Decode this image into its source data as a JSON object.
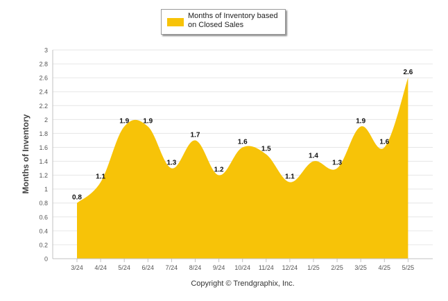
{
  "chart_data": {
    "type": "area",
    "categories": [
      "3/24",
      "4/24",
      "5/24",
      "6/24",
      "7/24",
      "8/24",
      "9/24",
      "10/24",
      "11/24",
      "12/24",
      "1/25",
      "2/25",
      "3/25",
      "4/25",
      "5/25"
    ],
    "series": [
      {
        "name": "Months of Inventory based on Closed Sales",
        "values": [
          0.8,
          1.1,
          1.9,
          1.9,
          1.3,
          1.7,
          1.2,
          1.6,
          1.5,
          1.1,
          1.4,
          1.3,
          1.9,
          1.6,
          2.6
        ],
        "labels": [
          "0.8",
          "1.1",
          "1.9",
          "1.9",
          "1.3",
          "1.7",
          "1.2",
          "1.6",
          "1.5",
          "1.1",
          "1.4",
          "1.3",
          "1.9",
          "1.6",
          "2.6"
        ]
      }
    ],
    "ylabel": "Months of Inventory",
    "xlabel": "",
    "ylim": [
      0,
      3
    ],
    "yticks": [
      "0",
      "0.2",
      "0.4",
      "0.6",
      "0.8",
      "1",
      "1.2",
      "1.4",
      "1.6",
      "1.8",
      "2",
      "2.2",
      "2.4",
      "2.6",
      "2.8",
      "3"
    ],
    "grid": true,
    "legend_position": "top-center",
    "colors": {
      "fill": "#f7c308",
      "grid": "#e6e6e6",
      "axis": "#c0c0c0"
    }
  },
  "legend": {
    "label_line1": "Months of Inventory based",
    "label_line2": "on Closed Sales"
  },
  "footer": {
    "copyright": "Copyright © Trendgraphix, Inc."
  }
}
